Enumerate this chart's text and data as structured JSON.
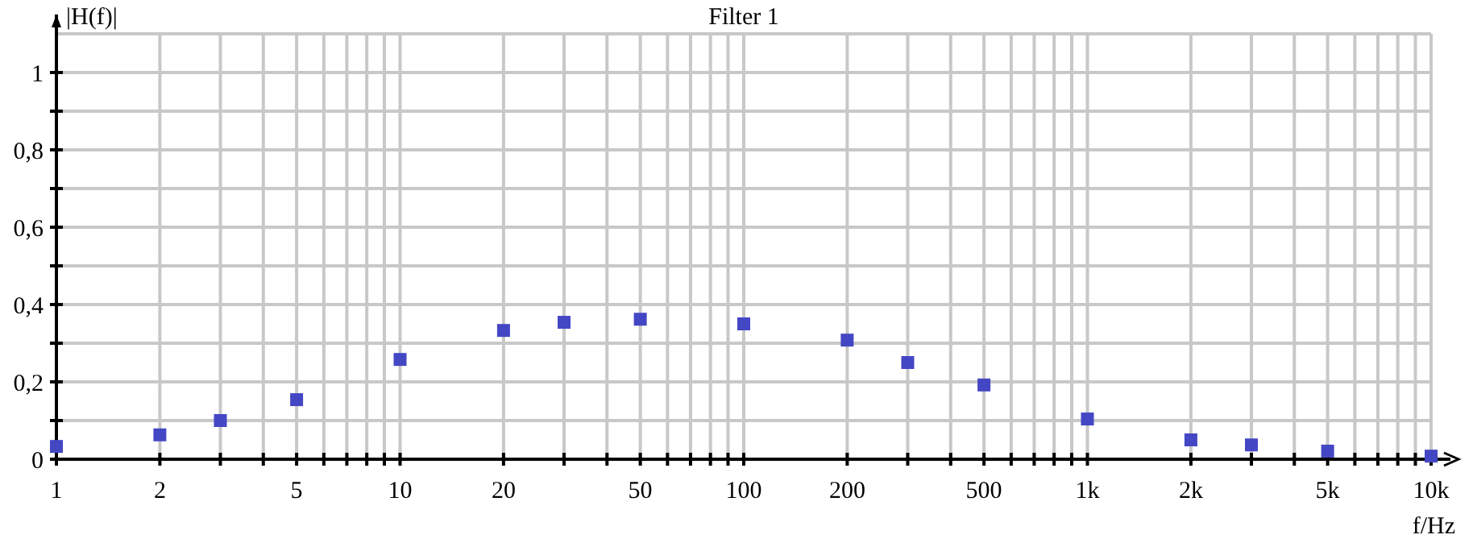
{
  "chart_data": {
    "type": "scatter",
    "title": "Filter 1",
    "xlabel": "f/Hz",
    "ylabel": "|H(f)|",
    "log": "x",
    "grid": true,
    "marker": "square",
    "x": [
      1,
      2,
      3,
      5,
      10,
      20,
      30,
      50,
      100,
      200,
      300,
      500,
      1000,
      2000,
      3000,
      5000,
      10000
    ],
    "series": [
      {
        "color": "#4447c4",
        "values": [
          0.033,
          0.063,
          0.1,
          0.154,
          0.258,
          0.333,
          0.354,
          0.362,
          0.35,
          0.308,
          0.25,
          0.192,
          0.104,
          0.05,
          0.037,
          0.021,
          0.008
        ]
      }
    ],
    "xlim": [
      1,
      10000
    ],
    "xticks": [
      1,
      2,
      {
        "value": 3,
        "label": null
      },
      {
        "value": 4,
        "label": null
      },
      5,
      {
        "value": 6,
        "label": null
      },
      {
        "value": 7,
        "label": null
      },
      {
        "value": 8,
        "label": null
      },
      {
        "value": 9,
        "label": null
      },
      10,
      20,
      {
        "value": 30,
        "label": null
      },
      {
        "value": 40,
        "label": null
      },
      50,
      {
        "value": 60,
        "label": null
      },
      {
        "value": 70,
        "label": null
      },
      {
        "value": 80,
        "label": null
      },
      {
        "value": 90,
        "label": null
      },
      100,
      200,
      {
        "value": 300,
        "label": null
      },
      {
        "value": 400,
        "label": null
      },
      500,
      {
        "value": 600,
        "label": null
      },
      {
        "value": 700,
        "label": null
      },
      {
        "value": 800,
        "label": null
      },
      {
        "value": 900,
        "label": null
      },
      {
        "value": 1000,
        "label": "1k"
      },
      {
        "value": 2000,
        "label": "2k"
      },
      {
        "value": 3000,
        "label": null
      },
      {
        "value": 4000,
        "label": null
      },
      {
        "value": 5000,
        "label": "5k"
      },
      {
        "value": 6000,
        "label": null
      },
      {
        "value": 7000,
        "label": null
      },
      {
        "value": 8000,
        "label": null
      },
      {
        "value": 9000,
        "label": null
      },
      {
        "value": 10000,
        "label": "10k"
      }
    ],
    "ylim": [
      0,
      1.1
    ],
    "yticks": [
      0,
      {
        "value": 0.1,
        "label": null
      },
      {
        "value": 0.2,
        "label": "0,2"
      },
      {
        "value": 0.3,
        "label": null
      },
      {
        "value": 0.4,
        "label": "0,4"
      },
      {
        "value": 0.5,
        "label": null
      },
      {
        "value": 0.6,
        "label": "0,6"
      },
      {
        "value": 0.7,
        "label": null
      },
      {
        "value": 0.8,
        "label": "0,8"
      },
      {
        "value": 0.9,
        "label": null
      },
      1
    ]
  }
}
